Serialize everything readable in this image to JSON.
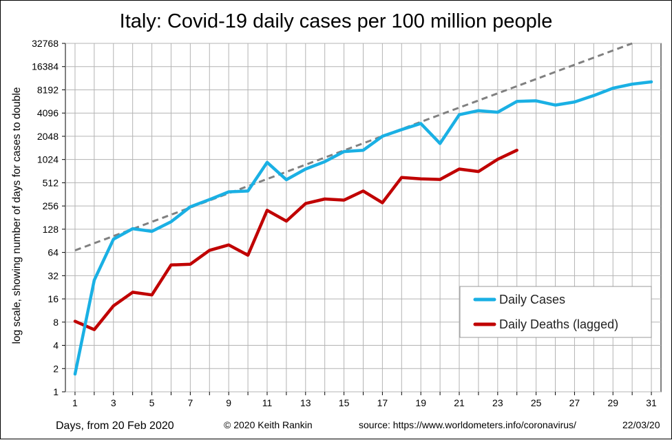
{
  "chart_data": {
    "type": "line",
    "title": "Italy: Covid-19 daily cases per 100 million people",
    "xlabel": "Days, from 20 Feb 2020",
    "ylabel": "log scale, showing number of days for cases to double",
    "y_scale": "log2",
    "ylim": [
      1,
      32768
    ],
    "xlim": [
      0.5,
      31.5
    ],
    "yticks": [
      1,
      2,
      4,
      8,
      16,
      32,
      64,
      128,
      256,
      512,
      1024,
      2048,
      4096,
      8192,
      16384,
      32768
    ],
    "ytick_labels": [
      "1",
      "2",
      "4",
      "8",
      "16",
      "32",
      "64",
      "128",
      "256",
      "512",
      "1024",
      "2048",
      "4096",
      "8192",
      "16384",
      "32768"
    ],
    "xticks": [
      1,
      3,
      5,
      7,
      9,
      11,
      13,
      15,
      17,
      19,
      21,
      23,
      25,
      27,
      29,
      31
    ],
    "xtick_labels": [
      "1",
      "3",
      "5",
      "7",
      "9",
      "11",
      "13",
      "15",
      "17",
      "19",
      "21",
      "23",
      "25",
      "27",
      "29",
      "31"
    ],
    "grid": true,
    "legend_position": "bottom-right",
    "series": [
      {
        "name": "Daily Cases",
        "color": "#1ab0e4",
        "x": [
          1,
          2,
          3,
          4,
          5,
          6,
          7,
          8,
          9,
          10,
          11,
          12,
          13,
          14,
          15,
          16,
          17,
          18,
          19,
          20,
          21,
          22,
          23,
          24,
          25,
          26,
          27,
          28,
          29,
          30,
          31
        ],
        "values": [
          1.7,
          28,
          95,
          130,
          120,
          160,
          250,
          310,
          390,
          400,
          940,
          560,
          770,
          960,
          1300,
          1350,
          2050,
          2500,
          3000,
          1650,
          3900,
          4400,
          4200,
          5800,
          5900,
          5200,
          5700,
          6900,
          8600,
          9700,
          10400
        ]
      },
      {
        "name": "Daily Deaths (lagged)",
        "color": "#c00000",
        "x": [
          1,
          2,
          3,
          4,
          5,
          6,
          7,
          8,
          9,
          10,
          11,
          12,
          13,
          14,
          15,
          16,
          17,
          18,
          19,
          20,
          21,
          22,
          23,
          24
        ],
        "values": [
          8.2,
          6.4,
          13,
          19.5,
          18,
          44,
          45,
          68,
          80,
          59,
          225,
          163,
          275,
          315,
          305,
          400,
          282,
          600,
          575,
          565,
          770,
          715,
          1030,
          1350
        ]
      },
      {
        "name": "",
        "style": "dashed",
        "color": "#808080",
        "x": [
          1,
          30
        ],
        "values": [
          68,
          32768
        ]
      }
    ]
  },
  "footer": {
    "credit": "© 2020  Keith Rankin",
    "source": "source:  https://www.worldometers.info/coronavirus/",
    "date": "22/03/20"
  }
}
